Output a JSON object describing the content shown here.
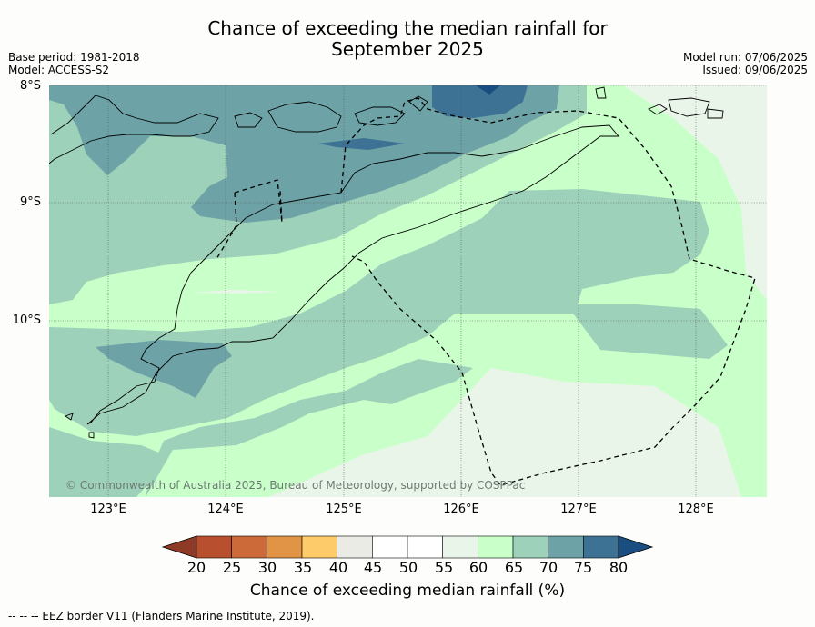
{
  "title_line1": "Chance of exceeding the median rainfall for",
  "title_line2": "September 2025",
  "meta_left": [
    "Base period: 1981-2018",
    "Model: ACCESS-S2"
  ],
  "meta_right": [
    "Model run: 07/06/2025",
    "Issued: 09/06/2025"
  ],
  "latitude_labels": [
    "8°S",
    "9°S",
    "10°S"
  ],
  "longitude_labels": [
    "123°E",
    "124°E",
    "125°E",
    "126°E",
    "127°E",
    "128°E"
  ],
  "copyright": "© Commonwealth of Australia 2025, Bureau of Meteorology, supported by COSPPac",
  "colorbar": {
    "ticks": [
      "20",
      "25",
      "30",
      "35",
      "40",
      "45",
      "50",
      "55",
      "60",
      "65",
      "70",
      "75",
      "80"
    ],
    "colors": [
      "#8e3a26",
      "#b84f2f",
      "#cc6a3a",
      "#e29446",
      "#fdcb69",
      "#ebebe6",
      "#ffffff",
      "#ffffff",
      "#eaf5ea",
      "#c9ffc9",
      "#9dd1b9",
      "#6da3a6",
      "#3e7294",
      "#1a4d80"
    ],
    "label": "Chance of exceeding median rainfall (%)"
  },
  "footer": "--  --  -- EEZ border V11 (Flanders Marine Institute, 2019).",
  "region": {
    "lon_range": [
      122.5,
      128.6
    ],
    "lat_range": [
      -11.5,
      -8.0
    ]
  }
}
